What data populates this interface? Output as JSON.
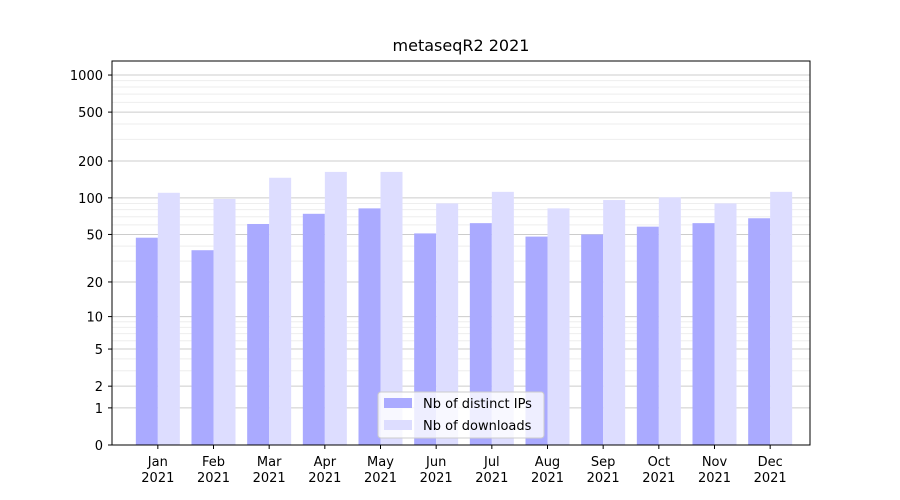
{
  "chart_data": {
    "type": "bar",
    "title": "metaseqR2 2021",
    "xlabel": "",
    "ylabel": "",
    "yscale": "log1p",
    "ylim": [
      0,
      1300
    ],
    "y_ticks": [
      0,
      1,
      2,
      5,
      10,
      20,
      50,
      100,
      200,
      500,
      1000
    ],
    "grid": true,
    "legend_position": "bottom-center",
    "categories": [
      [
        "Jan",
        "2021"
      ],
      [
        "Feb",
        "2021"
      ],
      [
        "Mar",
        "2021"
      ],
      [
        "Apr",
        "2021"
      ],
      [
        "May",
        "2021"
      ],
      [
        "Jun",
        "2021"
      ],
      [
        "Jul",
        "2021"
      ],
      [
        "Aug",
        "2021"
      ],
      [
        "Sep",
        "2021"
      ],
      [
        "Oct",
        "2021"
      ],
      [
        "Nov",
        "2021"
      ],
      [
        "Dec",
        "2021"
      ]
    ],
    "series": [
      {
        "name": "Nb of distinct IPs",
        "color": "#aaaaff",
        "values": [
          47,
          37,
          61,
          74,
          82,
          51,
          62,
          48,
          50,
          58,
          62,
          68
        ]
      },
      {
        "name": "Nb of downloads",
        "color": "#ddddff",
        "values": [
          110,
          98,
          146,
          163,
          163,
          90,
          112,
          82,
          96,
          101,
          90,
          112
        ]
      }
    ]
  }
}
